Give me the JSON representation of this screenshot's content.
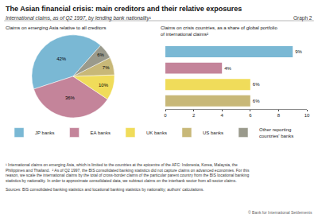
{
  "title": "The Asian financial crisis: main creditors and their relative exposures",
  "subtitle": "International claims, as of Q2 1997, by lending bank nationality¹",
  "annotations": [
    "Graph 2",
    "¹ International claims on emerging Asia, which is limited to the countries at the epicentre of the AFC: Indonesia, Korea, Malaysia, the\nPhilippines and Thailand.  ² As of Q2 1997, the BIS consolidated banking statistics did not capture claims on advanced economies. For this\nreason, we scale the international claims by the total of cross-border claims of the particular parent country from the BIS locational banking\nstatistics by nationality. In order to approximate consolidated data, we subtract claims on the interbank sector from all-sector claims.",
    "Sources: BIS consolidated banking statistics and locational banking statistics by nationality; authors' calculations.",
    "© Bank for International Settlements"
  ],
  "chart_data": [
    {
      "type": "pie",
      "title": "Claims on emerging Asia relative to all creditors",
      "categories": [
        "JP banks",
        "EA banks",
        "UK banks",
        "US banks",
        "Other reporting\ncountries' banks"
      ],
      "values": [
        42,
        36,
        10,
        7,
        6
      ],
      "value_labels": [
        "42%",
        "36%",
        "10%",
        "7%",
        "6%"
      ],
      "colors": [
        "#7ab8d4",
        "#c4849a",
        "#f0dc5a",
        "#c8b878",
        "#9a9a8c"
      ],
      "data_labels": true,
      "legend": "bottom"
    },
    {
      "type": "bar",
      "title": "Claims on crisis countries, as a share of global portfolio\nof international claims²",
      "orientation": "horizontal",
      "categories": [
        null,
        null,
        null,
        null
      ],
      "values": [
        9,
        4,
        6,
        6
      ],
      "value_labels": [
        "9%",
        "4%",
        "6%",
        "6%"
      ],
      "colors": [
        "#7ab8d4",
        "#c4849a",
        "#f0dc5a",
        "#c8b878"
      ],
      "xlim": [
        0,
        10
      ],
      "xticks": [
        0,
        2,
        4,
        6,
        8,
        10
      ],
      "grid": false,
      "data_labels": true,
      "tick_labels": "x"
    }
  ]
}
